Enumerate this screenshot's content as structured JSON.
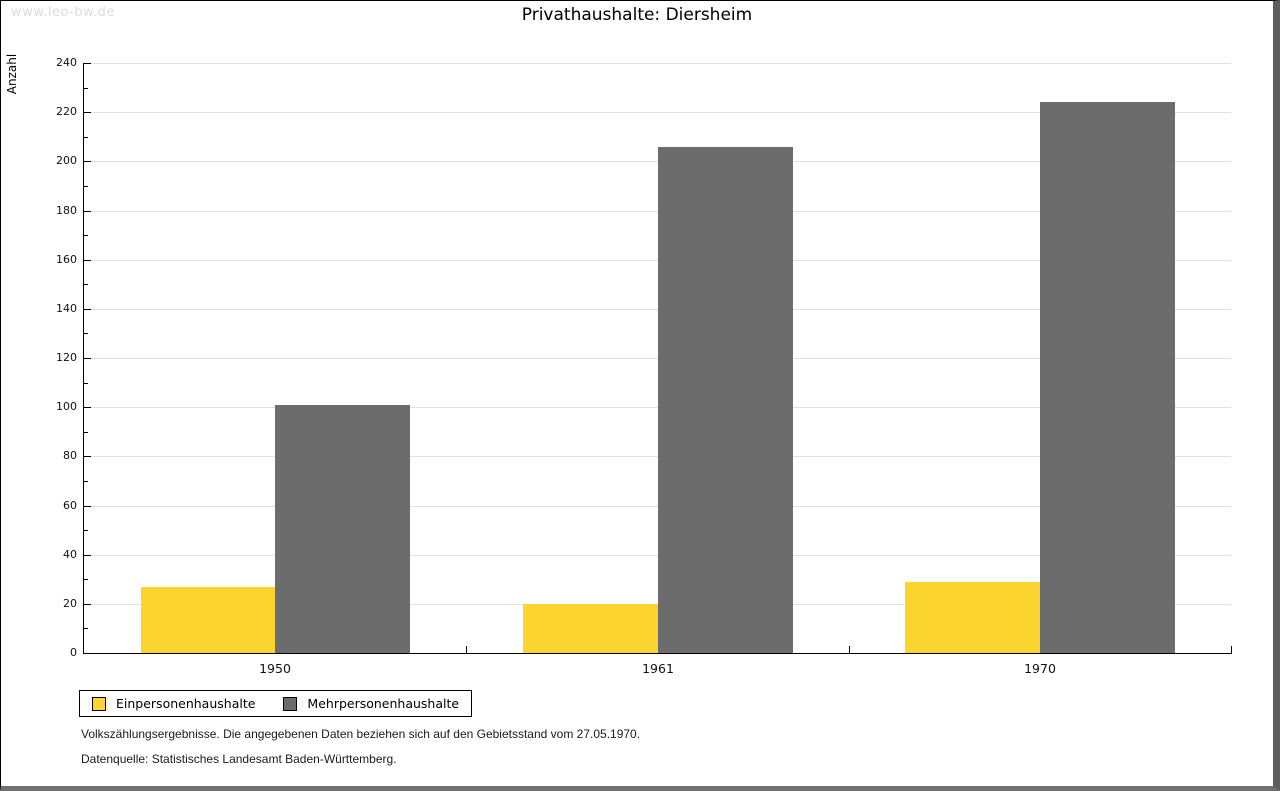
{
  "page": {
    "watermark": "www.leo-bw.de",
    "title": "Privathaushalte: Diersheim"
  },
  "chart_data": {
    "type": "bar",
    "title": "Privathaushalte: Diersheim",
    "categories": [
      "1950",
      "1961",
      "1970"
    ],
    "series": [
      {
        "name": "Einpersonenhaushalte",
        "color": "#FCD42F",
        "values": [
          27,
          20,
          29
        ]
      },
      {
        "name": "Mehrpersonenhaushalte",
        "color": "#6C6C6C",
        "values": [
          101,
          206,
          224
        ]
      }
    ],
    "xlabel": "",
    "ylabel": "Anzahl",
    "ylim": [
      0,
      240
    ],
    "y_major_step": 20,
    "y_minor_step": 10,
    "grid": true,
    "gridline_color": "#E0E0E0",
    "axis_color": "#000000",
    "legend_position": "bottom-left"
  },
  "footer": {
    "line1": "Volkszählungsergebnisse. Die angegebenen Daten beziehen sich auf den Gebietsstand vom 27.05.1970.",
    "line2": "Datenquelle: Statistisches Landesamt Baden-Württemberg."
  }
}
